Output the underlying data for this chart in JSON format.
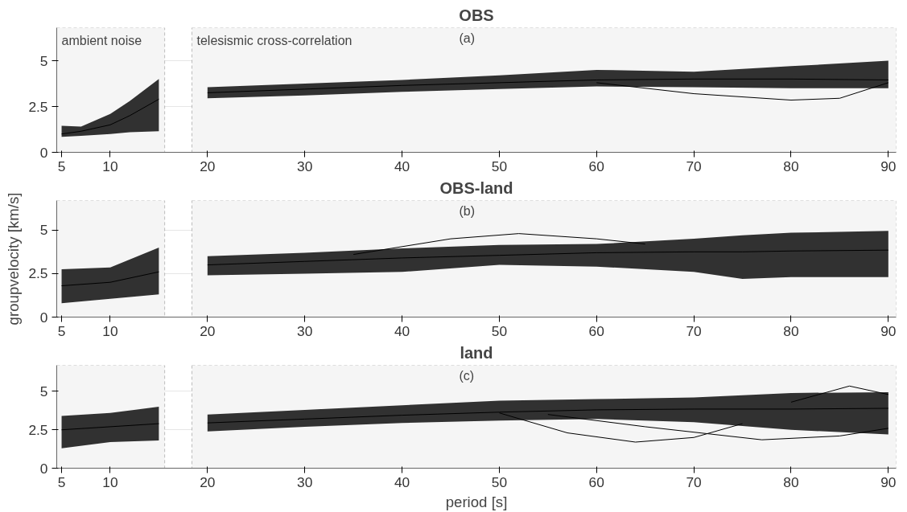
{
  "chart_data": [
    {
      "type": "line",
      "title": "OBS",
      "annotations": [
        "(a)"
      ],
      "xlim": [
        4.5,
        90.8
      ],
      "ylim": [
        0,
        6.8
      ],
      "xticks": [
        5,
        10,
        20,
        30,
        40,
        50,
        60,
        70,
        80,
        90
      ],
      "yticks": [
        0,
        2.5,
        5
      ],
      "grid": true,
      "line_style": "solid",
      "marker": "none",
      "bands": [
        {
          "axis": "x",
          "from": 4.5,
          "to": 15.6,
          "label": "ambient noise",
          "color": "#f5f5f5"
        },
        {
          "axis": "x",
          "from": 18.4,
          "to": 90.8,
          "label": "telesismic cross-correlation",
          "color": "#f5f5f5"
        }
      ],
      "series": [
        {
          "color": "#000000",
          "x": [
            5,
            7,
            10,
            12,
            15
          ],
          "values": [
            1.0,
            1.15,
            1.5,
            2.0,
            2.9
          ],
          "lower": [
            0.85,
            0.9,
            1.0,
            1.1,
            1.15
          ],
          "upper": [
            1.45,
            1.4,
            2.1,
            2.8,
            4.0
          ]
        },
        {
          "color": "#000000",
          "x": [
            20,
            30,
            40,
            50,
            60,
            70,
            80,
            90
          ],
          "values": [
            3.25,
            3.45,
            3.65,
            3.8,
            3.95,
            4.0,
            4.0,
            3.95
          ],
          "lower": [
            2.95,
            3.1,
            3.3,
            3.45,
            3.6,
            3.55,
            3.5,
            3.5
          ],
          "upper": [
            3.55,
            3.75,
            3.95,
            4.2,
            4.5,
            4.4,
            4.7,
            5.0
          ]
        },
        {
          "color": "#000000",
          "x": [
            60,
            70,
            80,
            85,
            90
          ],
          "values": [
            3.8,
            3.2,
            2.85,
            2.95,
            3.8
          ]
        }
      ]
    },
    {
      "type": "line",
      "title": "OBS-land",
      "annotations": [
        "(b)"
      ],
      "ylabel": "groupvelocity [km/s]",
      "xlim": [
        4.5,
        90.8
      ],
      "ylim": [
        0,
        6.7
      ],
      "xticks": [
        5,
        10,
        20,
        30,
        40,
        50,
        60,
        70,
        80,
        90
      ],
      "yticks": [
        0,
        2.5,
        5
      ],
      "grid": true,
      "line_style": "solid",
      "marker": "none",
      "bands": [
        {
          "axis": "x",
          "from": 4.5,
          "to": 15.6,
          "label": null,
          "color": "#f5f5f5"
        },
        {
          "axis": "x",
          "from": 18.4,
          "to": 90.8,
          "label": null,
          "color": "#f5f5f5"
        }
      ],
      "series": [
        {
          "color": "#000000",
          "x": [
            5,
            10,
            15
          ],
          "values": [
            1.8,
            2.0,
            2.6
          ],
          "lower": [
            0.8,
            1.05,
            1.3
          ],
          "upper": [
            2.75,
            2.85,
            4.0
          ]
        },
        {
          "color": "#000000",
          "x": [
            20,
            30,
            40,
            50,
            60,
            70,
            75,
            80,
            90
          ],
          "values": [
            3.0,
            3.2,
            3.4,
            3.55,
            3.7,
            3.75,
            3.75,
            3.8,
            3.85
          ],
          "lower": [
            2.4,
            2.5,
            2.6,
            3.0,
            2.9,
            2.6,
            2.2,
            2.3,
            2.3
          ],
          "upper": [
            3.5,
            3.7,
            3.95,
            4.15,
            4.2,
            4.5,
            4.7,
            4.85,
            4.95
          ]
        },
        {
          "color": "#000000",
          "x": [
            35,
            45,
            52,
            60,
            65
          ],
          "values": [
            3.6,
            4.5,
            4.8,
            4.5,
            4.2
          ]
        }
      ]
    },
    {
      "type": "line",
      "title": "land",
      "annotations": [
        "(c)"
      ],
      "xlabel": "period [s]",
      "xlim": [
        4.5,
        90.8
      ],
      "ylim": [
        0,
        6.7
      ],
      "xticks": [
        5,
        10,
        20,
        30,
        40,
        50,
        60,
        70,
        80,
        90
      ],
      "yticks": [
        0,
        2.5,
        5
      ],
      "grid": true,
      "line_style": "solid",
      "marker": "none",
      "bands": [
        {
          "axis": "x",
          "from": 4.5,
          "to": 15.6,
          "label": null,
          "color": "#f5f5f5"
        },
        {
          "axis": "x",
          "from": 18.4,
          "to": 90.8,
          "label": null,
          "color": "#f5f5f5"
        }
      ],
      "series": [
        {
          "color": "#000000",
          "x": [
            5,
            10,
            15
          ],
          "values": [
            2.5,
            2.7,
            2.9
          ],
          "lower": [
            1.3,
            1.7,
            1.8
          ],
          "upper": [
            3.4,
            3.6,
            4.0
          ]
        },
        {
          "color": "#000000",
          "x": [
            20,
            30,
            40,
            50,
            60,
            70,
            80,
            90
          ],
          "values": [
            2.95,
            3.2,
            3.45,
            3.65,
            3.8,
            3.85,
            3.85,
            3.9
          ],
          "lower": [
            2.4,
            2.7,
            2.95,
            3.1,
            3.2,
            3.0,
            2.5,
            2.2
          ],
          "upper": [
            3.5,
            3.8,
            4.1,
            4.4,
            4.5,
            4.6,
            4.9,
            4.95
          ]
        },
        {
          "color": "#000000",
          "x": [
            50,
            57,
            64,
            70,
            75
          ],
          "values": [
            3.6,
            2.3,
            1.7,
            2.0,
            2.9
          ]
        },
        {
          "color": "#000000",
          "x": [
            55,
            65,
            77,
            85,
            90
          ],
          "values": [
            3.5,
            2.7,
            1.85,
            2.1,
            2.6
          ]
        },
        {
          "color": "#000000",
          "x": [
            80,
            86,
            90
          ],
          "values": [
            4.3,
            5.35,
            4.8
          ]
        }
      ]
    }
  ]
}
